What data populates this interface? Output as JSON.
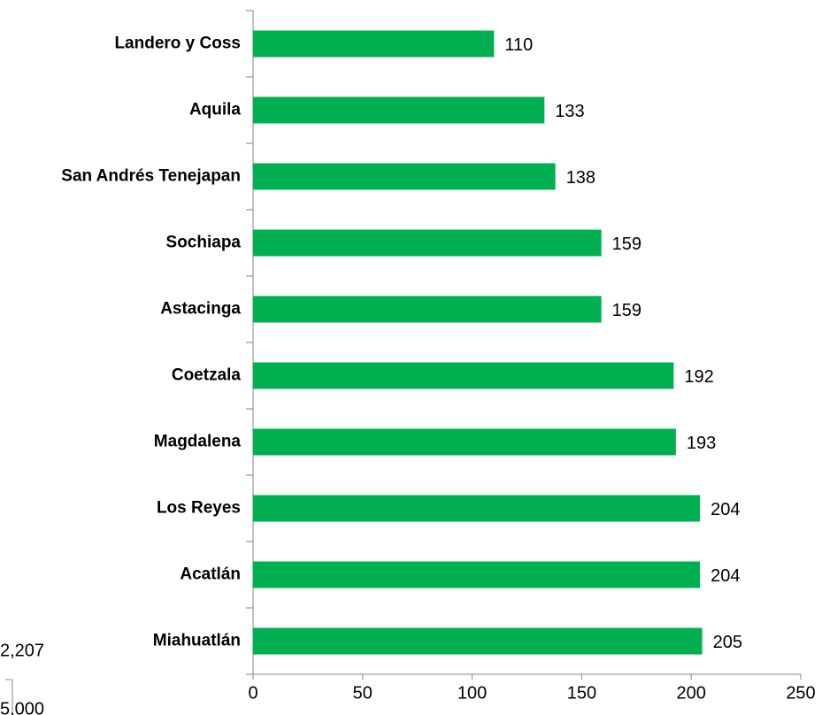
{
  "chart_data": {
    "type": "bar",
    "orientation": "horizontal",
    "categories": [
      "Landero y Coss",
      "Aquila",
      "San Andrés Tenejapan",
      "Sochiapa",
      "Astacinga",
      "Coetzala",
      "Magdalena",
      "Los Reyes",
      "Acatlán",
      "Miahuatlán"
    ],
    "values": [
      110,
      133,
      138,
      159,
      159,
      192,
      193,
      204,
      204,
      205
    ],
    "color": "#00b050",
    "xlim": [
      0,
      250
    ],
    "xticks": [
      0,
      50,
      100,
      150,
      200,
      250
    ],
    "fragments": [
      "2,207",
      "5,000"
    ]
  }
}
